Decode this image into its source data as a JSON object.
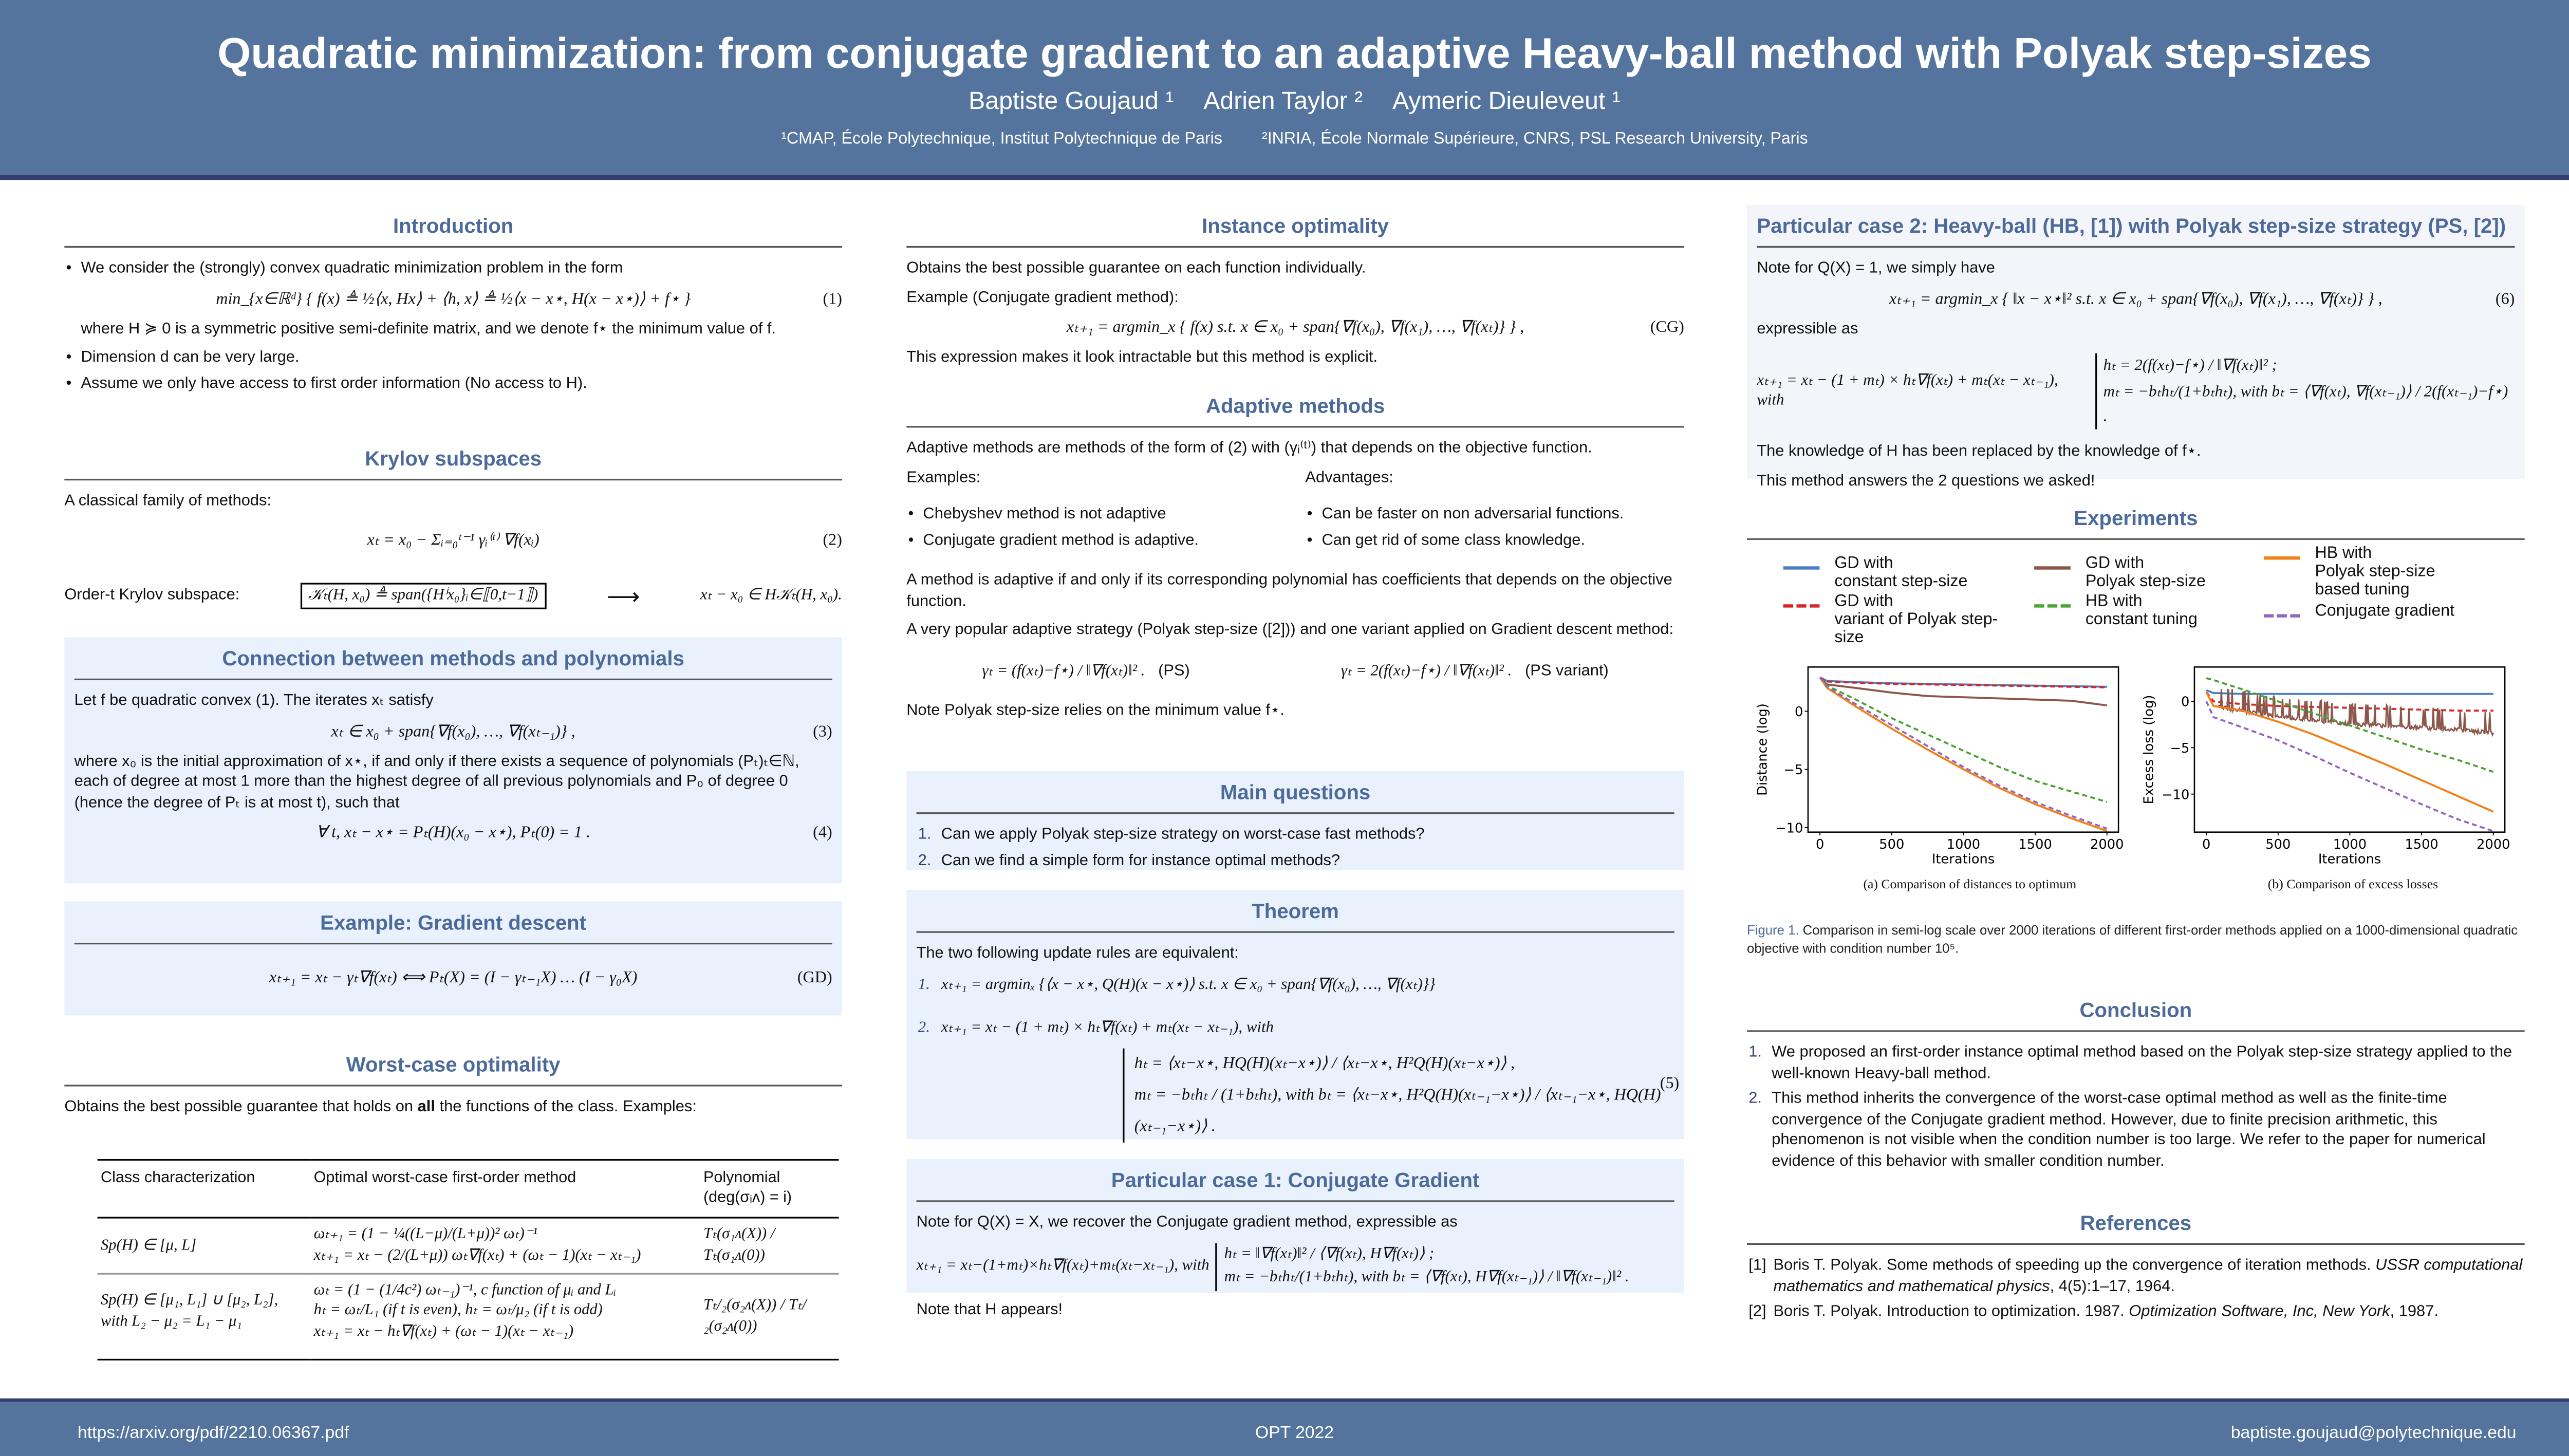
{
  "header": {
    "title": "Quadratic minimization: from conjugate gradient to an adaptive Heavy-ball method with Polyak step-sizes",
    "authors": [
      "Baptiste Goujaud ¹",
      "Adrien Taylor ²",
      "Aymeric Dieuleveut ¹"
    ],
    "affiliations": [
      "¹CMAP, École Polytechnique, Institut Polytechnique de Paris",
      "²INRIA, École Normale Supérieure, CNRS, PSL Research University, Paris"
    ]
  },
  "footer": {
    "url": "https://arxiv.org/pdf/2210.06367.pdf",
    "venue": "OPT 2022",
    "email": "baptiste.goujaud@polytechnique.edu"
  },
  "intro": {
    "title": "Introduction",
    "b1": "We consider the (strongly) convex quadratic minimization problem in the form",
    "eq": "min_{x∈ℝᵈ} { f(x) ≜ ½⟨x, Hx⟩ + ⟨h, x⟩ ≜ ½⟨x − x⋆, H(x − x⋆)⟩ + f⋆ }",
    "eq_num": "(1)",
    "where": "where H ≽ 0 is a symmetric positive semi-definite matrix, and we denote f⋆ the minimum value of f.",
    "b2": "Dimension d can be very large.",
    "b3": "Assume we only have access to first order information (No access to H)."
  },
  "krylov": {
    "title": "Krylov subspaces",
    "text": "A classical family of methods:",
    "eq": "xₜ = x₀ − Σᵢ₌₀ᵗ⁻¹ γᵢ⁽ᵗ⁾ ∇f(xᵢ)",
    "eq_num": "(2)",
    "label": "Order-t Krylov subspace:",
    "boxed": "𝒦ₜ(H, x₀) ≜ span({Hⁱx₀}ᵢ∈⟦0,t−1⟧)",
    "arrow": "⟶",
    "right": "xₜ − x₀ ∈ H𝒦ₜ(H, x₀)."
  },
  "connection": {
    "title": "Connection between methods and polynomials",
    "p1": "Let f be quadratic convex (1). The iterates xₜ satisfy",
    "eq": "xₜ ∈ x₀ + span{∇f(x₀), …, ∇f(xₜ₋₁)} ,",
    "eq_num": "(3)",
    "p2": "where x₀ is the initial approximation of x⋆, if and only if there exists a sequence of polynomials (Pₜ)ₜ∈ℕ, each of degree at most 1 more than the highest degree of all previous polynomials and P₀ of degree 0 (hence the degree of Pₜ is at most t), such that",
    "eq4": "∀ t,    xₜ − x⋆ = Pₜ(H)(x₀ − x⋆),    Pₜ(0) = 1 .",
    "eq4_num": "(4)"
  },
  "gd": {
    "title": "Example: Gradient descent",
    "eq": "xₜ₊₁ = xₜ − γₜ∇f(xₜ)     ⟺     Pₜ(X) = (I − γₜ₋₁X) … (I − γ₀X)",
    "eq_num": "(GD)"
  },
  "worst": {
    "title": "Worst-case optimality",
    "t1": "Obtains the best possible guarantee that holds on ",
    "bold": "all",
    "t2": " the functions of the class. Examples:",
    "headers": [
      "Class characterization",
      "Optimal worst-case first-order method",
      "Polynomial (deg(σᵢᴧ) = i)"
    ],
    "rows": [
      {
        "cls": "Sp(H) ∈ [μ, L]",
        "m1": "ωₜ₊₁ = (1 − ¼((L−μ)/(L+μ))² ωₜ)⁻¹",
        "m2": "xₜ₊₁ = xₜ − (2/(L+μ)) ωₜ∇f(xₜ) + (ωₜ − 1)(xₜ − xₜ₋₁)",
        "m3": "",
        "poly": "Tₜ(σ₁ᴧ(X)) / Tₜ(σ₁ᴧ(0))"
      },
      {
        "cls": "Sp(H) ∈ [μ₁, L₁] ∪ [μ₂, L₂], with L₂ − μ₂ = L₁ − μ₁",
        "m1": "ωₜ = (1 − (1/4c²) ωₜ₋₁)⁻¹,   c function of μᵢ and Lᵢ",
        "m2": "hₜ = ωₜ/L₁  (if t is even),    hₜ = ωₜ/μ₂  (if t is odd)",
        "m3": "xₜ₊₁ = xₜ − hₜ∇f(xₜ) + (ωₜ − 1)(xₜ − xₜ₋₁)",
        "poly": "Tₜ/₂(σ₂ᴧ(X)) / Tₜ/₂(σ₂ᴧ(0))"
      }
    ]
  },
  "instance": {
    "title": "Instance optimality",
    "p1": "Obtains the best possible guarantee on each function individually.",
    "p2": "Example (Conjugate gradient method):",
    "eq": "xₜ₊₁ = argmin_x { f(x) s.t. x ∈ x₀ + span{∇f(x₀), ∇f(x₁), …, ∇f(xₜ)} } ,",
    "eq_num": "(CG)",
    "p3": "This expression makes it look intractable but this method is explicit."
  },
  "adaptive": {
    "title": "Adaptive methods",
    "p1": "Adaptive methods are methods of the form of (2) with (γᵢ⁽ᵗ⁾) that depends on the objective function.",
    "examples_label": "Examples:",
    "advantages_label": "Advantages:",
    "examples": [
      "Chebyshev method is not adaptive",
      "Conjugate gradient method is adaptive."
    ],
    "advantages": [
      "Can be faster on non adversarial functions.",
      "Can get rid of some class knowledge."
    ],
    "p2": "A method is adaptive if and only if its corresponding polynomial has coefficients that depends on the objective function.",
    "p3": "A very popular adaptive strategy (Polyak step-size ([2])) and one variant applied on Gradient descent method:",
    "ps": "γₜ = (f(xₜ)−f⋆) / ‖∇f(xₜ)‖² .",
    "ps_label": "(PS)",
    "psv": "γₜ = 2(f(xₜ)−f⋆) / ‖∇f(xₜ)‖² .",
    "psv_label": "(PS variant)",
    "p4": "Note Polyak step-size relies on the minimum value f⋆."
  },
  "questions": {
    "title": "Main questions",
    "items": [
      "Can we apply Polyak step-size strategy on worst-case fast methods?",
      "Can we find a simple form for instance optimal methods?"
    ]
  },
  "theorem": {
    "title": "Theorem",
    "intro": "The two following update rules are equivalent:",
    "i1": "xₜ₊₁ = argminₓ {⟨x − x⋆, Q(H)(x − x⋆)⟩ s.t. x ∈ x₀ + span{∇f(x₀), …, ∇f(xₜ)}}",
    "i2": "xₜ₊₁ = xₜ − (1 + mₜ) × hₜ∇f(xₜ) + mₜ(xₜ − xₜ₋₁),     with",
    "h": "hₜ = ⟨xₜ−x⋆, HQ(H)(xₜ−x⋆)⟩ / ⟨xₜ−x⋆, H²Q(H)(xₜ−x⋆)⟩ ,",
    "m": "mₜ = −bₜhₜ / (1+bₜhₜ),    with bₜ = ⟨xₜ−x⋆, H²Q(H)(xₜ₋₁−x⋆)⟩ / ⟨xₜ₋₁−x⋆, HQ(H)(xₜ₋₁−x⋆)⟩ .",
    "eq_num": "(5)"
  },
  "case1": {
    "title": "Particular case 1: Conjugate Gradient",
    "p1": "Note for Q(X) = X, we recover the Conjugate gradient method, expressible as",
    "eq": "xₜ₊₁ = xₜ−(1+mₜ)×hₜ∇f(xₜ)+mₜ(xₜ−xₜ₋₁),   with",
    "h": "hₜ = ‖∇f(xₜ)‖² / ⟨∇f(xₜ), H∇f(xₜ)⟩ ;",
    "m": "mₜ = −bₜhₜ/(1+bₜhₜ),   with bₜ = ⟨∇f(xₜ), H∇f(xₜ₋₁)⟩ / ‖∇f(xₜ₋₁)‖² .",
    "p2": "Note that H appears!"
  },
  "case2": {
    "title": "Particular case 2: Heavy-ball (HB, [1]) with Polyak step-size strategy (PS, [2])",
    "p1": "Note for Q(X) = 1, we simply have",
    "eq": "xₜ₊₁ = argmin_x { ‖x − x⋆‖² s.t. x ∈ x₀ + span{∇f(x₀), ∇f(x₁), …, ∇f(xₜ)} } ,",
    "eq_num": "(6)",
    "p2": "expressible as",
    "eq2": "xₜ₊₁ = xₜ − (1 + mₜ) × hₜ∇f(xₜ) + mₜ(xₜ − xₜ₋₁),   with",
    "h": "hₜ = 2(f(xₜ)−f⋆) / ‖∇f(xₜ)‖² ;",
    "m": "mₜ = −bₜhₜ/(1+bₜhₜ),   with bₜ = ⟨∇f(xₜ), ∇f(xₜ₋₁)⟩ / 2(f(xₜ₋₁)−f⋆) .",
    "p3": "The knowledge of H has been replaced by the knowledge of f⋆.",
    "p4": "This method answers the 2 questions we asked!"
  },
  "experiments": {
    "title": "Experiments",
    "fig_label": "Figure 1.",
    "fig_caption": " Comparison in semi-log scale over 2000 iterations of different first-order methods applied on a 1000-dimensional quadratic objective with condition number 10⁵."
  },
  "chart_data": [
    {
      "type": "line",
      "title": "(a) Comparison of distances to optimum",
      "xlabel": "Iterations",
      "ylabel": "Distance (log)",
      "xlim": [
        -83,
        2080
      ],
      "ylim": [
        -10.4,
        3.8
      ],
      "xticks": [
        0,
        500,
        1000,
        1500,
        2000
      ],
      "yticks": [
        0,
        -5,
        -10
      ],
      "grid": false,
      "legend": "top (shared)",
      "x": [
        0,
        50,
        250,
        500,
        750,
        1000,
        1250,
        1500,
        1750,
        2000
      ],
      "series": [
        {
          "name": "GD with constant step-size",
          "color": "#4a7fc1",
          "dash": false,
          "values": [
            2.9,
            2.6,
            2.5,
            2.4,
            2.35,
            2.3,
            2.25,
            2.2,
            2.15,
            2.1
          ]
        },
        {
          "name": "GD with variant of Polyak step-size",
          "color": "#d62728",
          "dash": true,
          "values": [
            2.9,
            2.55,
            2.45,
            2.35,
            2.3,
            2.25,
            2.2,
            2.15,
            2.1,
            2.05
          ]
        },
        {
          "name": "GD with Polyak step-size",
          "color": "#8c564b",
          "dash": false,
          "values": [
            2.9,
            2.3,
            2.0,
            1.6,
            1.3,
            1.2,
            1.1,
            1.0,
            0.9,
            0.5
          ]
        },
        {
          "name": "HB with constant tuning",
          "color": "#4aa332",
          "dash": true,
          "values": [
            2.9,
            2.2,
            1.0,
            -0.6,
            -2.0,
            -3.4,
            -4.8,
            -6.0,
            -6.9,
            -7.8
          ]
        },
        {
          "name": "HB with Polyak step-size based tuning",
          "color": "#f28017",
          "dash": false,
          "values": [
            2.9,
            2.0,
            0.4,
            -1.5,
            -3.3,
            -5.0,
            -6.6,
            -8.0,
            -9.2,
            -10.3
          ]
        },
        {
          "name": "Conjugate gradient",
          "color": "#9467bd",
          "dash": true,
          "values": [
            2.9,
            2.1,
            0.6,
            -1.2,
            -3.0,
            -4.8,
            -6.4,
            -7.8,
            -9.0,
            -10.1
          ]
        }
      ]
    },
    {
      "type": "line",
      "title": "(b) Comparison of excess losses",
      "xlabel": "Iterations",
      "ylabel": "Excess loss (log)",
      "xlim": [
        -83,
        2080
      ],
      "ylim": [
        -14.1,
        3.7
      ],
      "xticks": [
        0,
        500,
        1000,
        1500,
        2000
      ],
      "yticks": [
        0,
        -5,
        -10
      ],
      "grid": false,
      "legend": "top (shared)",
      "x": [
        0,
        50,
        250,
        500,
        750,
        1000,
        1250,
        1500,
        1750,
        2000
      ],
      "series": [
        {
          "name": "GD with constant step-size",
          "color": "#4a7fc1",
          "dash": false,
          "values": [
            1.2,
            0.9,
            0.8,
            0.8,
            0.8,
            0.8,
            0.8,
            0.8,
            0.8,
            0.8
          ]
        },
        {
          "name": "GD with variant of Polyak step-size",
          "color": "#d62728",
          "dash": true,
          "values": [
            1.0,
            0.0,
            -0.3,
            -0.5,
            -0.6,
            -0.7,
            -0.8,
            -0.9,
            -1.0,
            -1.0
          ]
        },
        {
          "name": "GD with Polyak step-size",
          "color": "#8c564b",
          "dash": false,
          "noisy": true,
          "values": [
            1.0,
            -0.5,
            -1.0,
            -1.6,
            -2.0,
            -2.4,
            -2.6,
            -2.8,
            -3.0,
            -3.4
          ]
        },
        {
          "name": "HB with constant tuning",
          "color": "#4aa332",
          "dash": true,
          "values": [
            2.5,
            2.3,
            1.3,
            0.0,
            -1.3,
            -2.6,
            -3.9,
            -5.2,
            -6.3,
            -7.6
          ]
        },
        {
          "name": "HB with Polyak step-size based tuning",
          "color": "#f28017",
          "dash": false,
          "values": [
            1.0,
            -0.5,
            -1.0,
            -2.2,
            -3.6,
            -5.2,
            -6.8,
            -8.5,
            -10.2,
            -11.9
          ]
        },
        {
          "name": "Conjugate gradient",
          "color": "#9467bd",
          "dash": true,
          "values": [
            0.0,
            -1.7,
            -2.8,
            -4.2,
            -5.9,
            -7.7,
            -9.4,
            -11.1,
            -12.7,
            -14.0
          ]
        }
      ]
    }
  ],
  "conclusion": {
    "title": "Conclusion",
    "items": [
      "We proposed an first-order instance optimal method based on the Polyak step-size strategy applied to the well-known Heavy-ball method.",
      "This method inherits the convergence of the worst-case optimal method as well as the finite-time convergence of the Conjugate gradient method. However, due to finite precision arithmetic, this phenomenon is not visible when the condition number is too large. We refer to the paper for numerical evidence of this behavior with smaller condition number."
    ]
  },
  "references": {
    "title": "References",
    "items": [
      {
        "num": "[1]",
        "text": "Boris T. Polyak. Some methods of speeding up the convergence of iteration methods. ",
        "ital": "USSR computational mathematics and mathematical physics",
        "rest": ", 4(5):1–17, 1964."
      },
      {
        "num": "[2]",
        "text": "Boris T. Polyak. Introduction to optimization. 1987. ",
        "ital": "Optimization Software, Inc, New York",
        "rest": ", 1987."
      }
    ]
  }
}
